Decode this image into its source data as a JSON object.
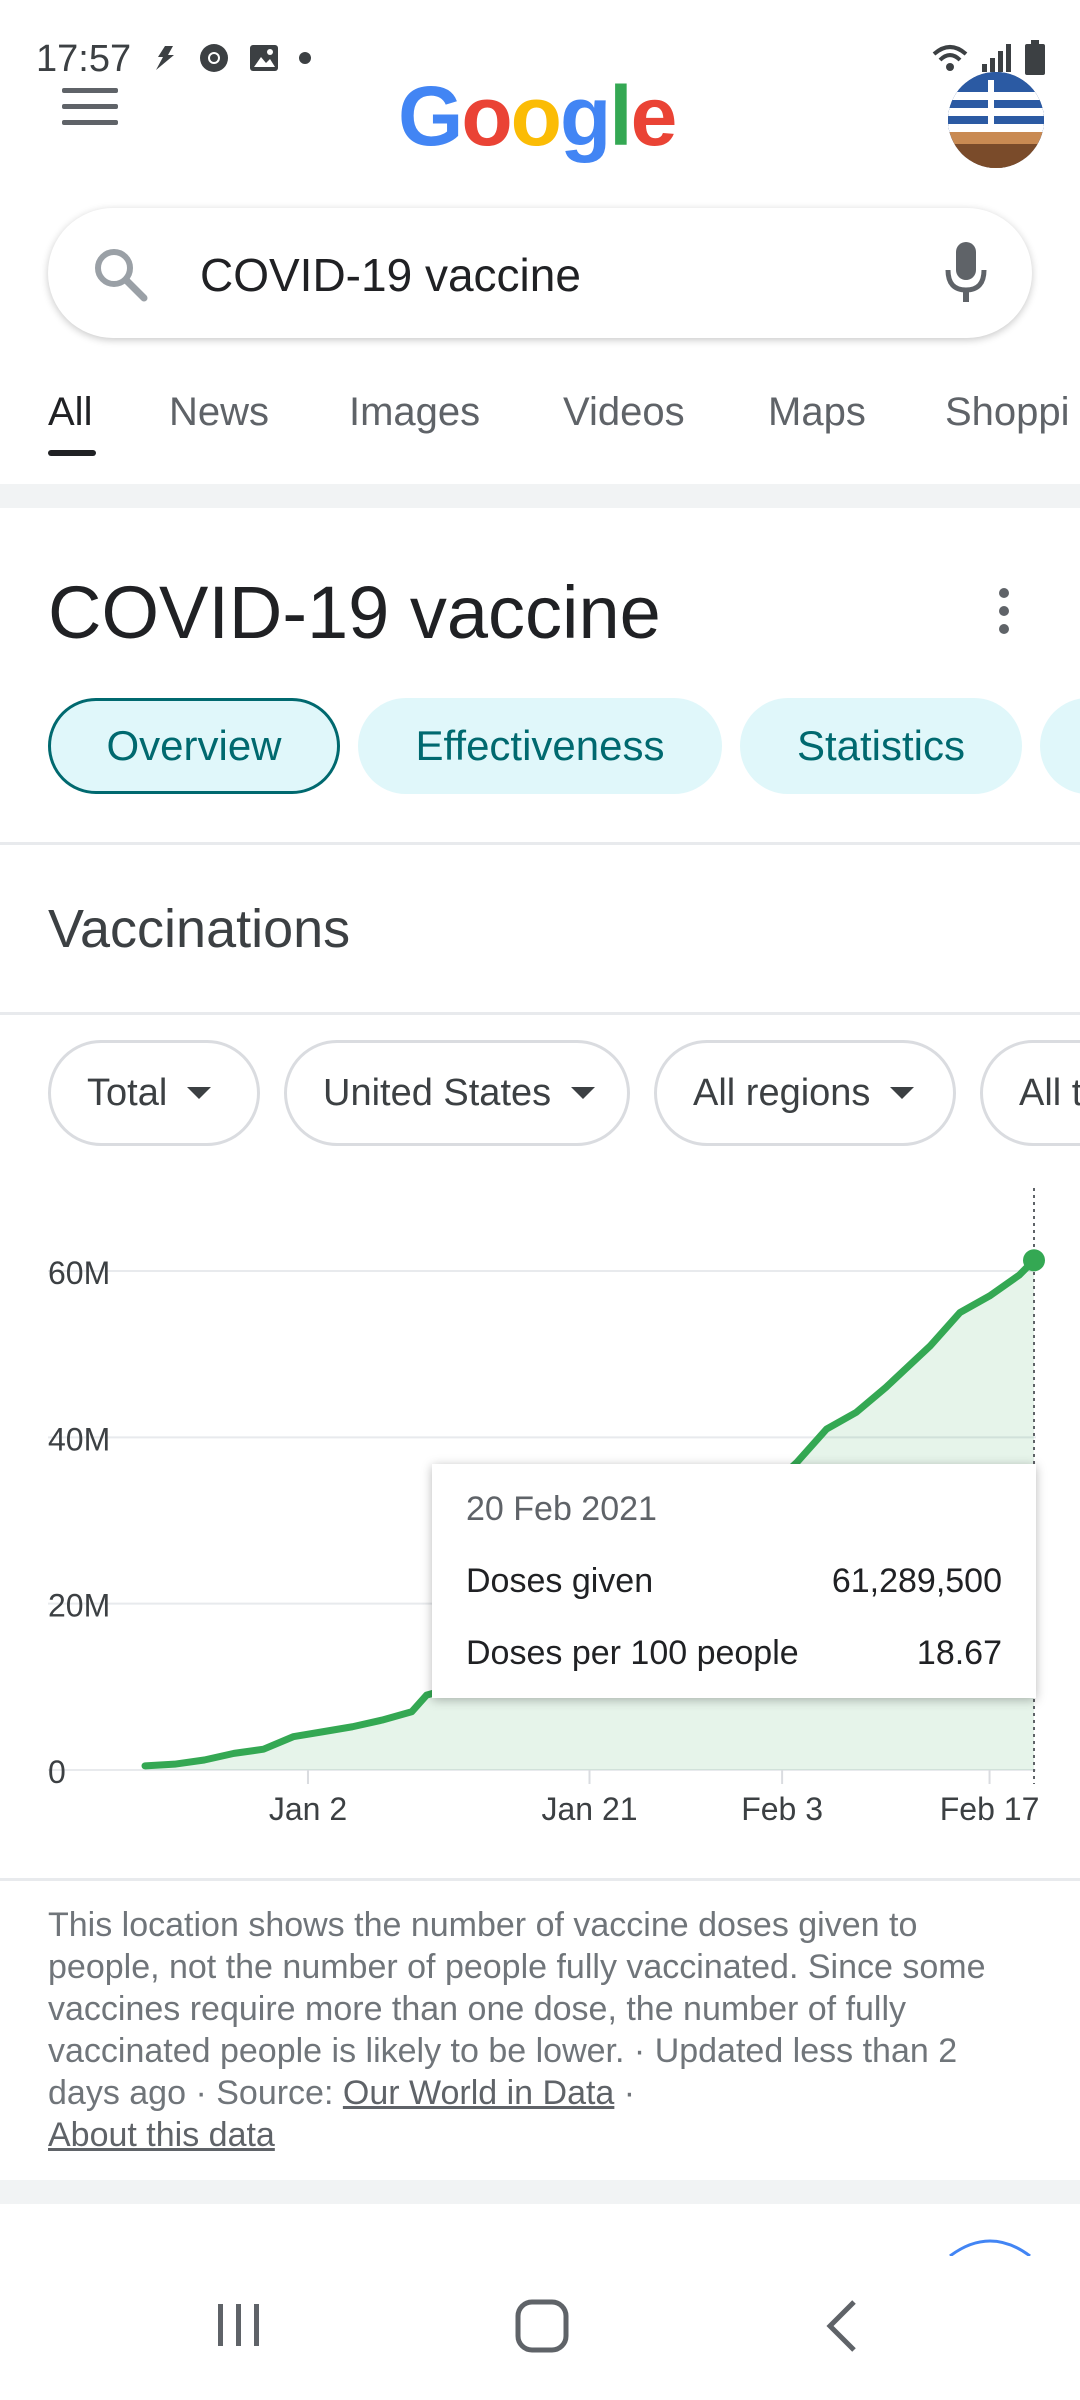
{
  "status_bar": {
    "time": "17:57",
    "left_icons": [
      "notification-icon",
      "chrome-icon",
      "gallery-icon",
      "dot-icon"
    ],
    "right_icons": [
      "wifi-icon",
      "signal-icon",
      "battery-icon"
    ]
  },
  "header": {
    "logo_letters": [
      "G",
      "o",
      "o",
      "g",
      "l",
      "e"
    ]
  },
  "search": {
    "query": "COVID-19 vaccine"
  },
  "tabs": [
    "All",
    "News",
    "Images",
    "Videos",
    "Maps",
    "Shoppi"
  ],
  "knowledge_panel": {
    "title": "COVID-19 vaccine",
    "chips": [
      "Overview",
      "Effectiveness",
      "Statistics"
    ]
  },
  "vaccinations": {
    "section_title": "Vaccinations",
    "filters": [
      "Total",
      "United States",
      "All regions",
      "All t"
    ],
    "tooltip": {
      "date": "20 Feb 2021",
      "rows": [
        {
          "label": "Doses given",
          "value": "61,289,500"
        },
        {
          "label": "Doses per 100 people",
          "value": "18.67"
        }
      ]
    },
    "note": "This location shows the number of vaccine doses given to people, not the number of people fully vaccinated. Since some vaccines require more than one dose, the number of fully vaccinated people is likely to be lower.",
    "updated": "Updated less than 2 days ago",
    "source_label": "Source:",
    "source_link": "Our World in Data",
    "about_link": "About this data"
  },
  "chart_data": {
    "type": "area",
    "title": "",
    "xlabel": "",
    "ylabel": "",
    "y_ticks": [
      "0",
      "20M",
      "40M",
      "60M"
    ],
    "x_ticks": [
      "Jan 2",
      "Jan 21",
      "Feb 3",
      "Feb 17"
    ],
    "ylim": [
      0,
      60000000
    ],
    "grid": true,
    "x": [
      "2020-12-22",
      "2020-12-24",
      "2020-12-26",
      "2020-12-28",
      "2020-12-30",
      "2021-01-01",
      "2021-01-03",
      "2021-01-05",
      "2021-01-07",
      "2021-01-09",
      "2021-01-10",
      "2021-01-12",
      "2021-01-14",
      "2021-01-17",
      "2021-01-20",
      "2021-01-23",
      "2021-01-26",
      "2021-01-29",
      "2021-02-01",
      "2021-02-04",
      "2021-02-06",
      "2021-02-08",
      "2021-02-10",
      "2021-02-13",
      "2021-02-15",
      "2021-02-17",
      "2021-02-19",
      "2021-02-20"
    ],
    "series": [
      {
        "values": [
          500000,
          700000,
          1200000,
          2000000,
          2500000,
          4000000,
          4600000,
          5200000,
          6000000,
          7000000,
          9000000,
          10000000,
          11200000,
          12500000,
          15500000,
          18000000,
          22000000,
          26000000,
          32000000,
          37000000,
          41000000,
          43000000,
          46000000,
          51000000,
          55000000,
          57000000,
          59500000,
          61289500
        ]
      }
    ],
    "highlight": {
      "x": "2021-02-20",
      "y": 61289500
    }
  }
}
